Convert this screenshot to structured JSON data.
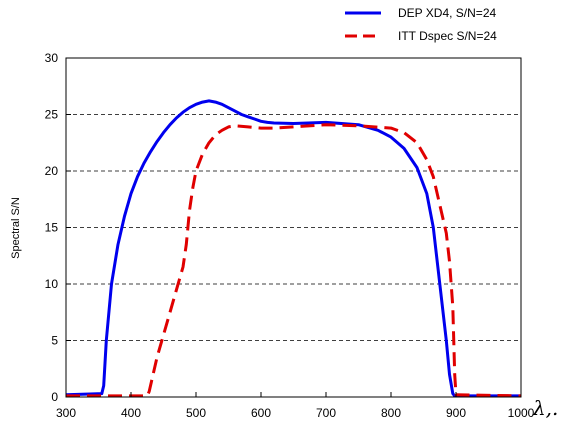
{
  "chart_data": {
    "type": "line",
    "title": "",
    "xlabel": "λ,.",
    "ylabel": "Spectral S/N",
    "xlim": [
      300,
      1000
    ],
    "ylim": [
      0,
      30
    ],
    "xticks": [
      300,
      400,
      500,
      600,
      700,
      800,
      900,
      1000
    ],
    "yticks": [
      0,
      5,
      10,
      15,
      20,
      25,
      30
    ],
    "grid": "horizontal dashed",
    "legend_position": "top, outside plot",
    "series": [
      {
        "name": "DEP XD4, S/N=24",
        "color": "#0000ee",
        "style": "solid",
        "x": [
          300,
          355,
          358,
          362,
          370,
          380,
          390,
          400,
          410,
          420,
          430,
          440,
          450,
          460,
          470,
          480,
          490,
          500,
          510,
          520,
          530,
          540,
          550,
          560,
          570,
          580,
          590,
          600,
          610,
          620,
          650,
          700,
          750,
          780,
          800,
          820,
          840,
          855,
          865,
          875,
          885,
          890,
          895,
          898,
          900,
          1000
        ],
        "y": [
          0.2,
          0.3,
          1.0,
          5.0,
          10.0,
          13.5,
          16.0,
          18.0,
          19.5,
          20.7,
          21.7,
          22.6,
          23.4,
          24.1,
          24.7,
          25.2,
          25.6,
          25.9,
          26.1,
          26.2,
          26.1,
          25.9,
          25.6,
          25.3,
          25.0,
          24.8,
          24.6,
          24.4,
          24.3,
          24.25,
          24.2,
          24.3,
          24.1,
          23.6,
          23.0,
          22.0,
          20.3,
          18.0,
          15.0,
          10.0,
          5.0,
          2.0,
          0.3,
          0.1,
          0.1,
          0.1
        ]
      },
      {
        "name": "ITT Dspec S/N=24",
        "color": "#e00000",
        "style": "dashed",
        "x": [
          300,
          425,
          428,
          432,
          440,
          450,
          460,
          470,
          480,
          485,
          490,
          495,
          500,
          510,
          520,
          530,
          540,
          550,
          560,
          580,
          600,
          620,
          650,
          700,
          750,
          800,
          820,
          840,
          855,
          865,
          875,
          885,
          890,
          895,
          898,
          900,
          1000
        ],
        "y": [
          0.1,
          0.1,
          0.5,
          1.5,
          3.5,
          5.5,
          7.5,
          9.5,
          11.5,
          13.5,
          16.5,
          18.5,
          20.0,
          21.5,
          22.5,
          23.2,
          23.6,
          23.9,
          24.0,
          23.9,
          23.8,
          23.8,
          23.9,
          24.1,
          24.0,
          23.8,
          23.4,
          22.5,
          21.0,
          19.5,
          17.0,
          14.5,
          12.0,
          8.0,
          2.0,
          0.2,
          0.1
        ]
      }
    ]
  }
}
